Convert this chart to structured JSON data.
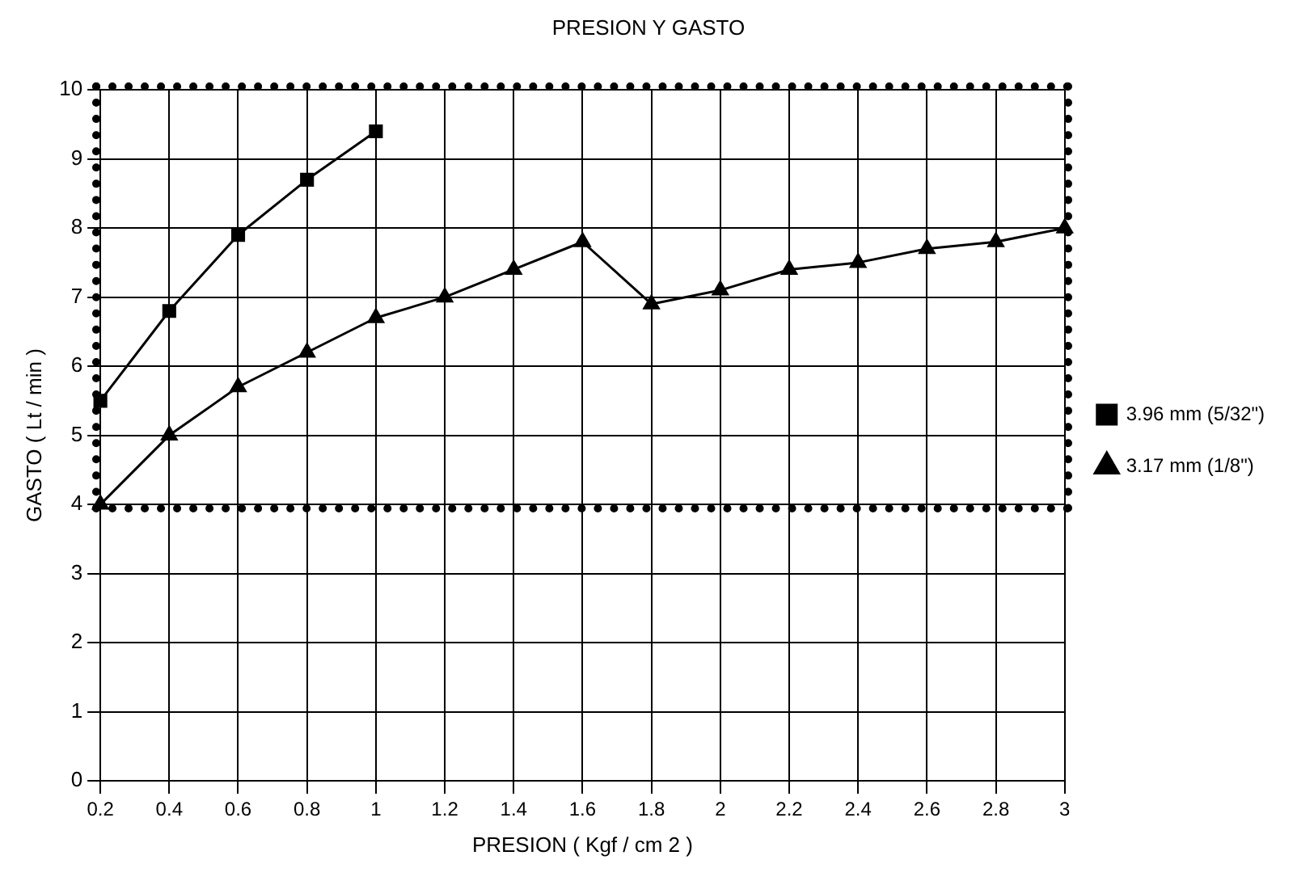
{
  "chart_data": {
    "type": "line",
    "title": "PRESION Y GASTO",
    "xlabel": "PRESION ( Kgf / cm 2 )",
    "ylabel": "GASTO ( Lt / min )",
    "categories": [
      "0.2",
      "0.4",
      "0.6",
      "0.8",
      "1",
      "1.2",
      "1.4",
      "1.6",
      "1.8",
      "2",
      "2.2",
      "2.4",
      "2.6",
      "2.8",
      "3"
    ],
    "series": [
      {
        "name": "3.96 mm (5/32\")",
        "color": "#000000",
        "marker": "square",
        "values": [
          5.5,
          6.8,
          7.9,
          8.7,
          9.4,
          null,
          null,
          null,
          null,
          null,
          null,
          null,
          null,
          null,
          null
        ]
      },
      {
        "name": "3.17 mm (1/8\")",
        "color": "#000000",
        "marker": "triangle",
        "values": [
          4.0,
          5.0,
          5.7,
          6.2,
          6.7,
          7.0,
          7.4,
          7.8,
          6.9,
          7.1,
          7.4,
          7.5,
          7.7,
          7.8,
          8.0
        ]
      }
    ],
    "ylim": [
      0,
      10
    ],
    "yticks": [
      0,
      1,
      2,
      3,
      4,
      5,
      6,
      7,
      8,
      9,
      10
    ],
    "grid": true,
    "legend": "right",
    "line_style": "solid"
  }
}
